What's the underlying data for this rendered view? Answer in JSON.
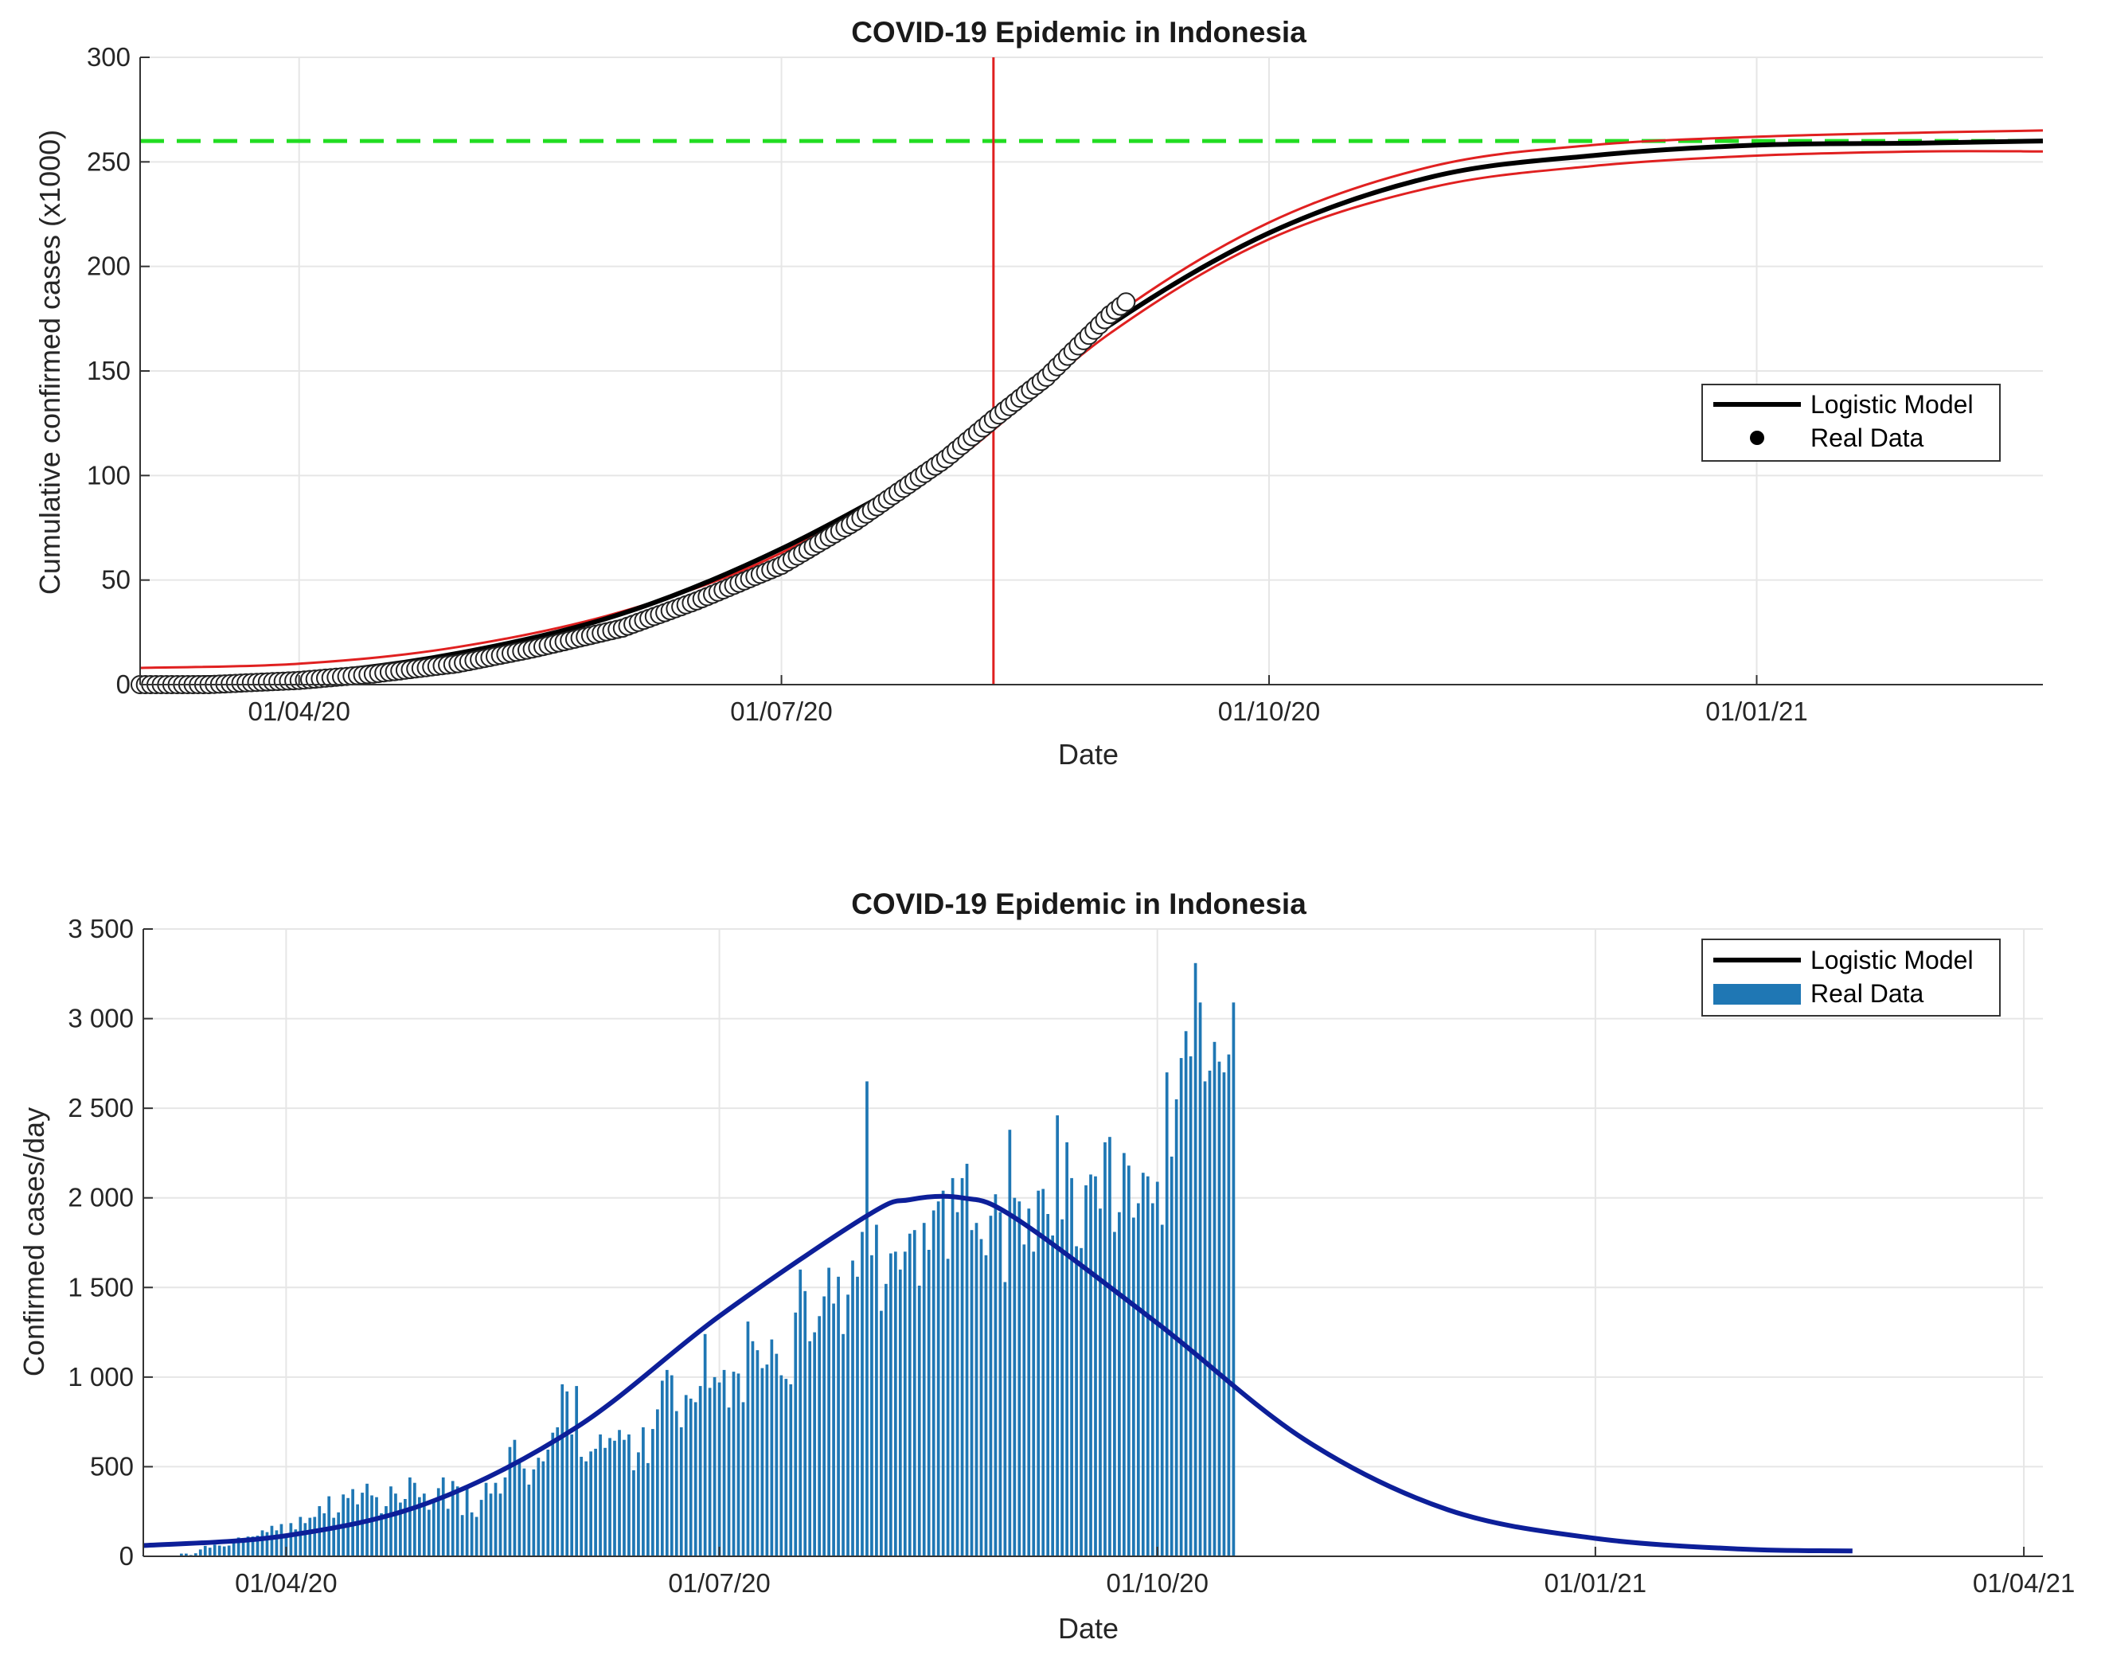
{
  "colors": {
    "model": "#000000",
    "bounds": "#e02020",
    "asymptote": "#22dd22",
    "peak_line": "#e02020",
    "bars": "#1f77b4",
    "daily_model": "#0d1f99",
    "grid": "#e6e6e6",
    "axes": "#333333"
  },
  "chart_data": [
    {
      "type": "line",
      "title": "COVID-19 Epidemic in Indonesia",
      "xlabel": "Date",
      "ylabel": "Cumulative confirmed cases (x1000)",
      "x_is_date": true,
      "xlim": [
        "2020-03-02",
        "2021-02-24"
      ],
      "ylim": [
        0,
        300
      ],
      "xticks": [
        {
          "date": "2020-04-01",
          "label": "01/04/20"
        },
        {
          "date": "2020-07-01",
          "label": "01/07/20"
        },
        {
          "date": "2020-10-01",
          "label": "01/10/20"
        },
        {
          "date": "2021-01-01",
          "label": "01/01/21"
        }
      ],
      "yticks": [
        0,
        50,
        100,
        150,
        200,
        250,
        300
      ],
      "grid": true,
      "legend": {
        "placement": "right",
        "entries": [
          "Logistic Model",
          "Real Data"
        ]
      },
      "asymptote_y": 260,
      "peak_date": "2020-08-10",
      "series": [
        {
          "name": "Logistic Model",
          "style": "line",
          "x": [
            "2020-03-02",
            "2020-04-01",
            "2020-05-01",
            "2020-06-01",
            "2020-07-01",
            "2020-08-01",
            "2020-08-10",
            "2020-09-01",
            "2020-10-01",
            "2020-11-01",
            "2020-12-01",
            "2021-01-01",
            "2021-02-01",
            "2021-02-24"
          ],
          "y": [
            3,
            5,
            15,
            34,
            65,
            108,
            127,
            172,
            216,
            243,
            253,
            258,
            259,
            260
          ]
        },
        {
          "name": "Real Data",
          "style": "points",
          "x": [
            "2020-03-02",
            "2020-03-15",
            "2020-04-01",
            "2020-04-15",
            "2020-05-01",
            "2020-05-15",
            "2020-06-01",
            "2020-06-15",
            "2020-07-01",
            "2020-07-15",
            "2020-08-01",
            "2020-08-10",
            "2020-08-20",
            "2020-09-01",
            "2020-09-04"
          ],
          "y": [
            0,
            0,
            2,
            5,
            10,
            17,
            27,
            40,
            57,
            78,
            108,
            127,
            147,
            177,
            183
          ]
        },
        {
          "name": "",
          "style": "bound",
          "x": [
            "2020-03-02",
            "2020-04-01",
            "2020-05-01",
            "2020-06-01",
            "2020-07-01",
            "2020-08-01",
            "2020-09-01",
            "2020-10-01",
            "2020-11-01",
            "2020-12-01",
            "2021-01-01",
            "2021-02-01",
            "2021-02-24"
          ],
          "y": [
            8,
            10,
            18,
            35,
            63,
            110,
            175,
            221,
            248,
            258,
            262,
            264,
            265
          ]
        },
        {
          "name": "",
          "style": "bound",
          "x": [
            "2020-03-02",
            "2020-04-01",
            "2020-05-01",
            "2020-06-01",
            "2020-07-01",
            "2020-08-01",
            "2020-09-01",
            "2020-10-01",
            "2020-11-01",
            "2020-12-01",
            "2021-01-01",
            "2021-02-01",
            "2021-02-24"
          ],
          "y": [
            1,
            2,
            9,
            27,
            58,
            104,
            168,
            213,
            238,
            248,
            253,
            255,
            255
          ]
        }
      ]
    },
    {
      "type": "bar",
      "title": "COVID-19 Epidemic in Indonesia",
      "xlabel": "Date",
      "ylabel": "Confirmed cases/day",
      "x_is_date": true,
      "xlim": [
        "2020-03-02",
        "2021-04-05"
      ],
      "ylim": [
        0,
        3500
      ],
      "xticks": [
        {
          "date": "2020-04-01",
          "label": "01/04/20"
        },
        {
          "date": "2020-07-01",
          "label": "01/07/20"
        },
        {
          "date": "2020-10-01",
          "label": "01/10/20"
        },
        {
          "date": "2021-01-01",
          "label": "01/01/21"
        },
        {
          "date": "2021-04-01",
          "label": "01/04/21"
        }
      ],
      "yticks": [
        0,
        500,
        1000,
        1500,
        2000,
        2500,
        3000,
        3500
      ],
      "grid": true,
      "legend": {
        "placement": "top-right",
        "entries": [
          "Logistic Model",
          "Real Data"
        ]
      },
      "bars": {
        "name": "Real Data",
        "start_date": "2020-03-02",
        "values": [
          2,
          0,
          0,
          0,
          2,
          2,
          0,
          2,
          15,
          15,
          7,
          17,
          38,
          58,
          48,
          65,
          60,
          55,
          60,
          80,
          105,
          100,
          110,
          110,
          115,
          145,
          135,
          170,
          145,
          180,
          110,
          185,
          150,
          220,
          185,
          215,
          220,
          280,
          240,
          335,
          215,
          245,
          345,
          325,
          375,
          290,
          355,
          405,
          340,
          330,
          240,
          280,
          390,
          350,
          300,
          320,
          440,
          410,
          330,
          350,
          260,
          310,
          380,
          440,
          265,
          420,
          390,
          230,
          390,
          245,
          220,
          315,
          410,
          350,
          410,
          350,
          440,
          610,
          650,
          525,
          490,
          400,
          485,
          550,
          530,
          595,
          690,
          720,
          960,
          920,
          680,
          950,
          555,
          530,
          585,
          600,
          680,
          605,
          660,
          645,
          705,
          650,
          680,
          480,
          580,
          720,
          520,
          710,
          820,
          980,
          1040,
          1010,
          810,
          720,
          900,
          880,
          860,
          950,
          1240,
          940,
          1000,
          970,
          1040,
          830,
          1030,
          1020,
          860,
          1310,
          1200,
          1150,
          1050,
          1070,
          1210,
          1130,
          1010,
          990,
          960,
          1360,
          1600,
          1480,
          1200,
          1250,
          1340,
          1450,
          1610,
          1410,
          1560,
          1240,
          1460,
          1650,
          1560,
          1810,
          2650,
          1680,
          1850,
          1370,
          1520,
          1690,
          1700,
          1600,
          1700,
          1800,
          1820,
          1510,
          1860,
          1710,
          1930,
          1980,
          2040,
          1660,
          2110,
          1920,
          2110,
          2190,
          1820,
          1860,
          1770,
          1680,
          1900,
          2020,
          1920,
          1530,
          2380,
          2000,
          1980,
          1740,
          1940,
          1700,
          2040,
          2050,
          1910,
          1790,
          2460,
          1880,
          2310,
          2110,
          1730,
          1720,
          2070,
          2130,
          2120,
          1940,
          2310,
          2340,
          1810,
          1920,
          2250,
          2180,
          1890,
          1970,
          2140,
          2120,
          1970,
          2090,
          1850,
          2700,
          2230,
          2550,
          2780,
          2930,
          2790,
          3310,
          3090,
          2650,
          2710,
          2870,
          2760,
          2700,
          2800,
          3090
        ]
      },
      "series": [
        {
          "name": "Logistic Model",
          "x": [
            "2020-03-02",
            "2020-04-01",
            "2020-05-01",
            "2020-06-01",
            "2020-07-01",
            "2020-08-01",
            "2020-08-10",
            "2020-08-21",
            "2020-09-01",
            "2020-10-01",
            "2020-11-01",
            "2020-12-01",
            "2021-01-01",
            "2021-02-01",
            "2021-02-24"
          ],
          "y": [
            60,
            115,
            300,
            720,
            1340,
            1900,
            1990,
            2000,
            1890,
            1300,
            650,
            260,
            100,
            40,
            30
          ]
        }
      ]
    }
  ]
}
